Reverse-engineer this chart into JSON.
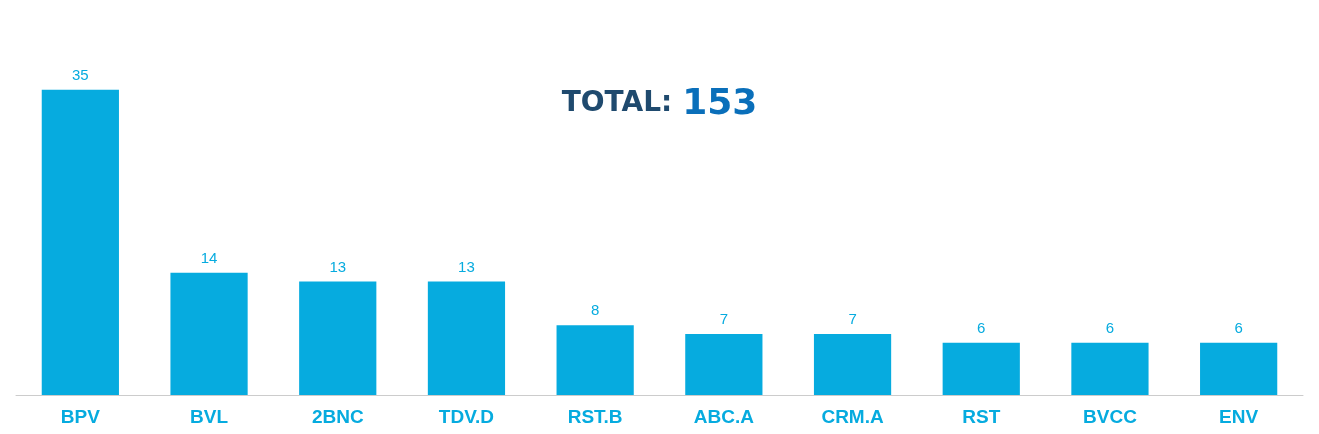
{
  "chart_data": {
    "type": "bar",
    "title": "TOTAL: 153",
    "categories": [
      "BPV",
      "BVL",
      "2BNC",
      "TDV.D",
      "RST.B",
      "ABC.A",
      "CRM.A",
      "RST",
      "BVCC",
      "ENV"
    ],
    "values": [
      35,
      14,
      13,
      13,
      8,
      7,
      7,
      6,
      6,
      6
    ],
    "color": "#06abdf",
    "data_labels": true
  }
}
